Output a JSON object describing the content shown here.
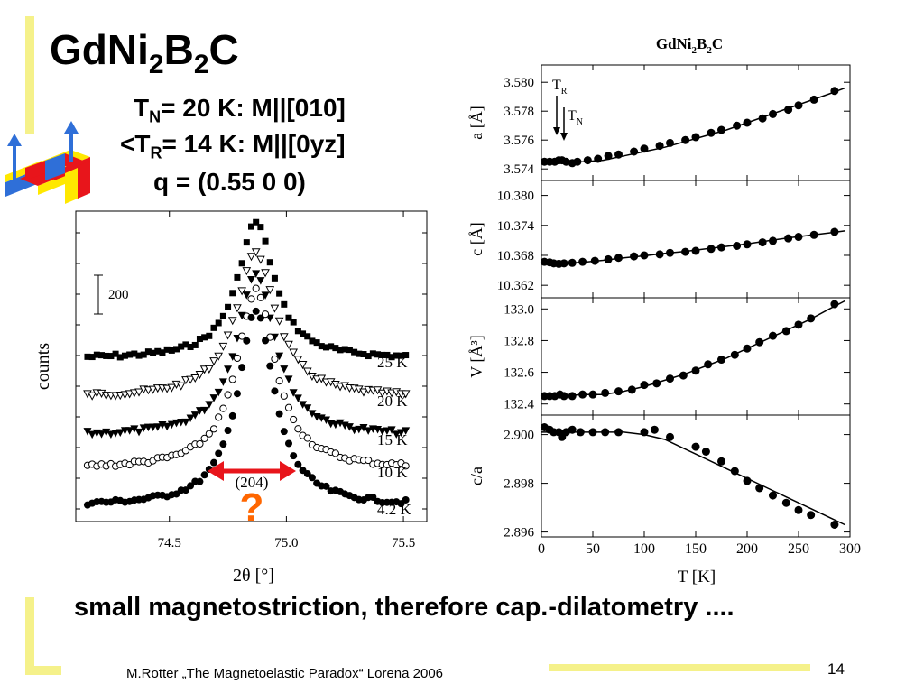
{
  "slide": {
    "title": {
      "main": "GdNi",
      "s1": "2",
      "mid": "B",
      "s2": "2",
      "end": "C"
    },
    "info": {
      "tn": {
        "pre": "T",
        "sub": "N",
        "post": "= 20 K:  M||[010]"
      },
      "tr": {
        "pre": "<T",
        "sub": "R",
        "post": "= 14 K:  M||[0yz]"
      },
      "q": "q = (0.55  0  0)"
    },
    "conclusion": "small magnetostriction, therefore cap.-dilatometry ....",
    "footer": "M.Rotter „The Magnetoelastic Paradox“ Lorena 2006",
    "page_number": "14"
  },
  "colors": {
    "accent_yellow": "#f5f18a",
    "arrow_red": "#e8151b",
    "question_orange": "#ff6600",
    "crystal_blue": "#2f6fd8",
    "crystal_red": "#e8151b",
    "crystal_yellow": "#ffe800"
  },
  "chart_data": [
    {
      "type": "scatter",
      "xlabel": "2θ [°]",
      "ylabel": "counts",
      "x_ticks": [
        "74.5",
        "75.0",
        "75.5"
      ],
      "xlim": [
        74.1,
        75.6
      ],
      "scale_bar_label": "200",
      "peak_label": "(204)",
      "question_mark": "?",
      "center": 74.87,
      "series": [
        {
          "name": "25 K",
          "marker": "filled-square",
          "baseline": 398,
          "height": 152,
          "width": 0.095,
          "step": 0.02
        },
        {
          "name": "20 K",
          "marker": "open-triangle-down",
          "baseline": 441,
          "height": 160,
          "width": 0.105,
          "step": 0.02
        },
        {
          "name": "15 K",
          "marker": "filled-triangle-down",
          "baseline": 484,
          "height": 182,
          "width": 0.1,
          "step": 0.02
        },
        {
          "name": "10 K",
          "marker": "open-circle",
          "baseline": 520,
          "height": 198,
          "width": 0.1,
          "step": 0.02
        },
        {
          "name": "4.2 K",
          "marker": "filled-circle",
          "baseline": 561,
          "height": 216,
          "width": 0.095,
          "step": 0.02
        }
      ]
    },
    {
      "type": "line",
      "title": {
        "main": "GdNi",
        "s1": "2",
        "mid": "B",
        "s2": "2",
        "end": "C"
      },
      "xlabel": "T [K]",
      "xlim": [
        0,
        300
      ],
      "x_ticks": [
        "0",
        "50",
        "100",
        "150",
        "200",
        "250",
        "300"
      ],
      "annotations": {
        "tr": {
          "main": "T",
          "sub": "R"
        },
        "tn": {
          "main": "T",
          "sub": "N"
        }
      },
      "panels": [
        {
          "ylabel": "a [Å]",
          "ylim": [
            3.5732,
            3.5812
          ],
          "ticks": [
            3.574,
            3.576,
            3.578,
            3.58
          ],
          "tick_labels": [
            "3.574",
            "3.576",
            "3.578",
            "3.580"
          ],
          "points": [
            [
              3,
              3.5745
            ],
            [
              8,
              3.5745
            ],
            [
              13,
              3.5745
            ],
            [
              17,
              3.5746
            ],
            [
              20,
              3.5746
            ],
            [
              24,
              3.5745
            ],
            [
              30,
              3.5744
            ],
            [
              35,
              3.5745
            ],
            [
              45,
              3.5746
            ],
            [
              55,
              3.5747
            ],
            [
              65,
              3.5749
            ],
            [
              75,
              3.575
            ],
            [
              90,
              3.5752
            ],
            [
              100,
              3.5754
            ],
            [
              115,
              3.5756
            ],
            [
              125,
              3.5758
            ],
            [
              140,
              3.576
            ],
            [
              150,
              3.5762
            ],
            [
              165,
              3.5765
            ],
            [
              175,
              3.5767
            ],
            [
              190,
              3.577
            ],
            [
              200,
              3.5772
            ],
            [
              215,
              3.5775
            ],
            [
              225,
              3.5778
            ],
            [
              240,
              3.5781
            ],
            [
              250,
              3.5784
            ],
            [
              265,
              3.5788
            ],
            [
              285,
              3.5794
            ]
          ],
          "curve": [
            [
              0,
              3.5745
            ],
            [
              20,
              3.5745
            ],
            [
              40,
              3.5745
            ],
            [
              60,
              3.5746
            ],
            [
              80,
              3.5749
            ],
            [
              100,
              3.5752
            ],
            [
              120,
              3.5755
            ],
            [
              140,
              3.5759
            ],
            [
              160,
              3.5763
            ],
            [
              180,
              3.5767
            ],
            [
              200,
              3.5772
            ],
            [
              220,
              3.5777
            ],
            [
              240,
              3.5782
            ],
            [
              260,
              3.5787
            ],
            [
              280,
              3.5792
            ],
            [
              295,
              3.5796
            ]
          ]
        },
        {
          "ylabel": "c [Å]",
          "ylim": [
            10.3595,
            10.383
          ],
          "ticks": [
            10.362,
            10.368,
            10.374,
            10.38
          ],
          "tick_labels": [
            "10.362",
            "10.368",
            "10.374",
            "10.380"
          ],
          "points": [
            [
              3,
              10.3667
            ],
            [
              8,
              10.3666
            ],
            [
              12,
              10.3664
            ],
            [
              17,
              10.3663
            ],
            [
              22,
              10.3664
            ],
            [
              30,
              10.3665
            ],
            [
              40,
              10.3667
            ],
            [
              52,
              10.3669
            ],
            [
              65,
              10.3672
            ],
            [
              75,
              10.3675
            ],
            [
              90,
              10.3678
            ],
            [
              100,
              10.368
            ],
            [
              115,
              10.3682
            ],
            [
              125,
              10.3685
            ],
            [
              140,
              10.3687
            ],
            [
              150,
              10.3689
            ],
            [
              165,
              10.3693
            ],
            [
              175,
              10.3696
            ],
            [
              190,
              10.3699
            ],
            [
              200,
              10.3702
            ],
            [
              215,
              10.3706
            ],
            [
              225,
              10.3709
            ],
            [
              240,
              10.3714
            ],
            [
              250,
              10.3717
            ],
            [
              265,
              10.3721
            ],
            [
              285,
              10.3727
            ]
          ],
          "curve": [
            [
              0,
              10.3666
            ],
            [
              20,
              10.3664
            ],
            [
              40,
              10.3666
            ],
            [
              60,
              10.367
            ],
            [
              80,
              10.3675
            ],
            [
              100,
              10.3679
            ],
            [
              120,
              10.3684
            ],
            [
              140,
              10.3688
            ],
            [
              160,
              10.3693
            ],
            [
              180,
              10.3698
            ],
            [
              200,
              10.3703
            ],
            [
              220,
              10.3709
            ],
            [
              240,
              10.3715
            ],
            [
              260,
              10.372
            ],
            [
              280,
              10.3725
            ],
            [
              295,
              10.3729
            ]
          ]
        },
        {
          "ylabel": "V [Å³]",
          "ylim": [
            132.33,
            133.07
          ],
          "ticks": [
            132.4,
            132.6,
            132.8,
            133.0
          ],
          "tick_labels": [
            "132.4",
            "132.6",
            "132.8",
            "133.0"
          ],
          "points": [
            [
              3,
              132.45
            ],
            [
              8,
              132.45
            ],
            [
              13,
              132.45
            ],
            [
              18,
              132.46
            ],
            [
              22,
              132.45
            ],
            [
              30,
              132.45
            ],
            [
              40,
              132.46
            ],
            [
              50,
              132.46
            ],
            [
              62,
              132.47
            ],
            [
              75,
              132.48
            ],
            [
              88,
              132.49
            ],
            [
              100,
              132.52
            ],
            [
              112,
              132.53
            ],
            [
              125,
              132.56
            ],
            [
              138,
              132.58
            ],
            [
              150,
              132.61
            ],
            [
              162,
              132.65
            ],
            [
              175,
              132.68
            ],
            [
              188,
              132.71
            ],
            [
              200,
              132.75
            ],
            [
              212,
              132.79
            ],
            [
              225,
              132.83
            ],
            [
              238,
              132.86
            ],
            [
              250,
              132.9
            ],
            [
              262,
              132.94
            ],
            [
              285,
              133.03
            ]
          ],
          "curve": [
            [
              0,
              132.45
            ],
            [
              20,
              132.45
            ],
            [
              40,
              132.46
            ],
            [
              60,
              132.46
            ],
            [
              80,
              132.48
            ],
            [
              100,
              132.51
            ],
            [
              120,
              132.55
            ],
            [
              140,
              132.59
            ],
            [
              160,
              132.64
            ],
            [
              180,
              132.69
            ],
            [
              200,
              132.75
            ],
            [
              220,
              132.81
            ],
            [
              240,
              132.87
            ],
            [
              260,
              132.93
            ],
            [
              280,
              133.0
            ],
            [
              295,
              133.05
            ]
          ]
        },
        {
          "ylabel": "c/a",
          "ylim": [
            2.8958,
            2.9008
          ],
          "ticks": [
            2.896,
            2.898,
            2.9
          ],
          "tick_labels": [
            "2.896",
            "2.898",
            "2.900"
          ],
          "points": [
            [
              3,
              2.9003
            ],
            [
              8,
              2.9002
            ],
            [
              12,
              2.9001
            ],
            [
              17,
              2.9001
            ],
            [
              20,
              2.8999
            ],
            [
              24,
              2.9001
            ],
            [
              30,
              2.9002
            ],
            [
              38,
              2.9001
            ],
            [
              50,
              2.9001
            ],
            [
              62,
              2.9001
            ],
            [
              75,
              2.9001
            ],
            [
              100,
              2.9001
            ],
            [
              110,
              2.9002
            ],
            [
              125,
              2.8999
            ],
            [
              150,
              2.8995
            ],
            [
              160,
              2.8993
            ],
            [
              175,
              2.8989
            ],
            [
              188,
              2.8985
            ],
            [
              200,
              2.8981
            ],
            [
              212,
              2.8978
            ],
            [
              225,
              2.8975
            ],
            [
              238,
              2.8972
            ],
            [
              250,
              2.8969
            ],
            [
              262,
              2.8967
            ],
            [
              285,
              2.8963
            ]
          ],
          "curve": [
            [
              0,
              2.9001
            ],
            [
              20,
              2.9001
            ],
            [
              40,
              2.9001
            ],
            [
              60,
              2.9001
            ],
            [
              80,
              2.9001
            ],
            [
              100,
              2.9
            ],
            [
              120,
              2.8998
            ],
            [
              140,
              2.8994
            ],
            [
              160,
              2.899
            ],
            [
              180,
              2.8986
            ],
            [
              200,
              2.8982
            ],
            [
              220,
              2.8978
            ],
            [
              240,
              2.8974
            ],
            [
              260,
              2.897
            ],
            [
              280,
              2.8966
            ],
            [
              295,
              2.8963
            ]
          ]
        }
      ]
    }
  ]
}
